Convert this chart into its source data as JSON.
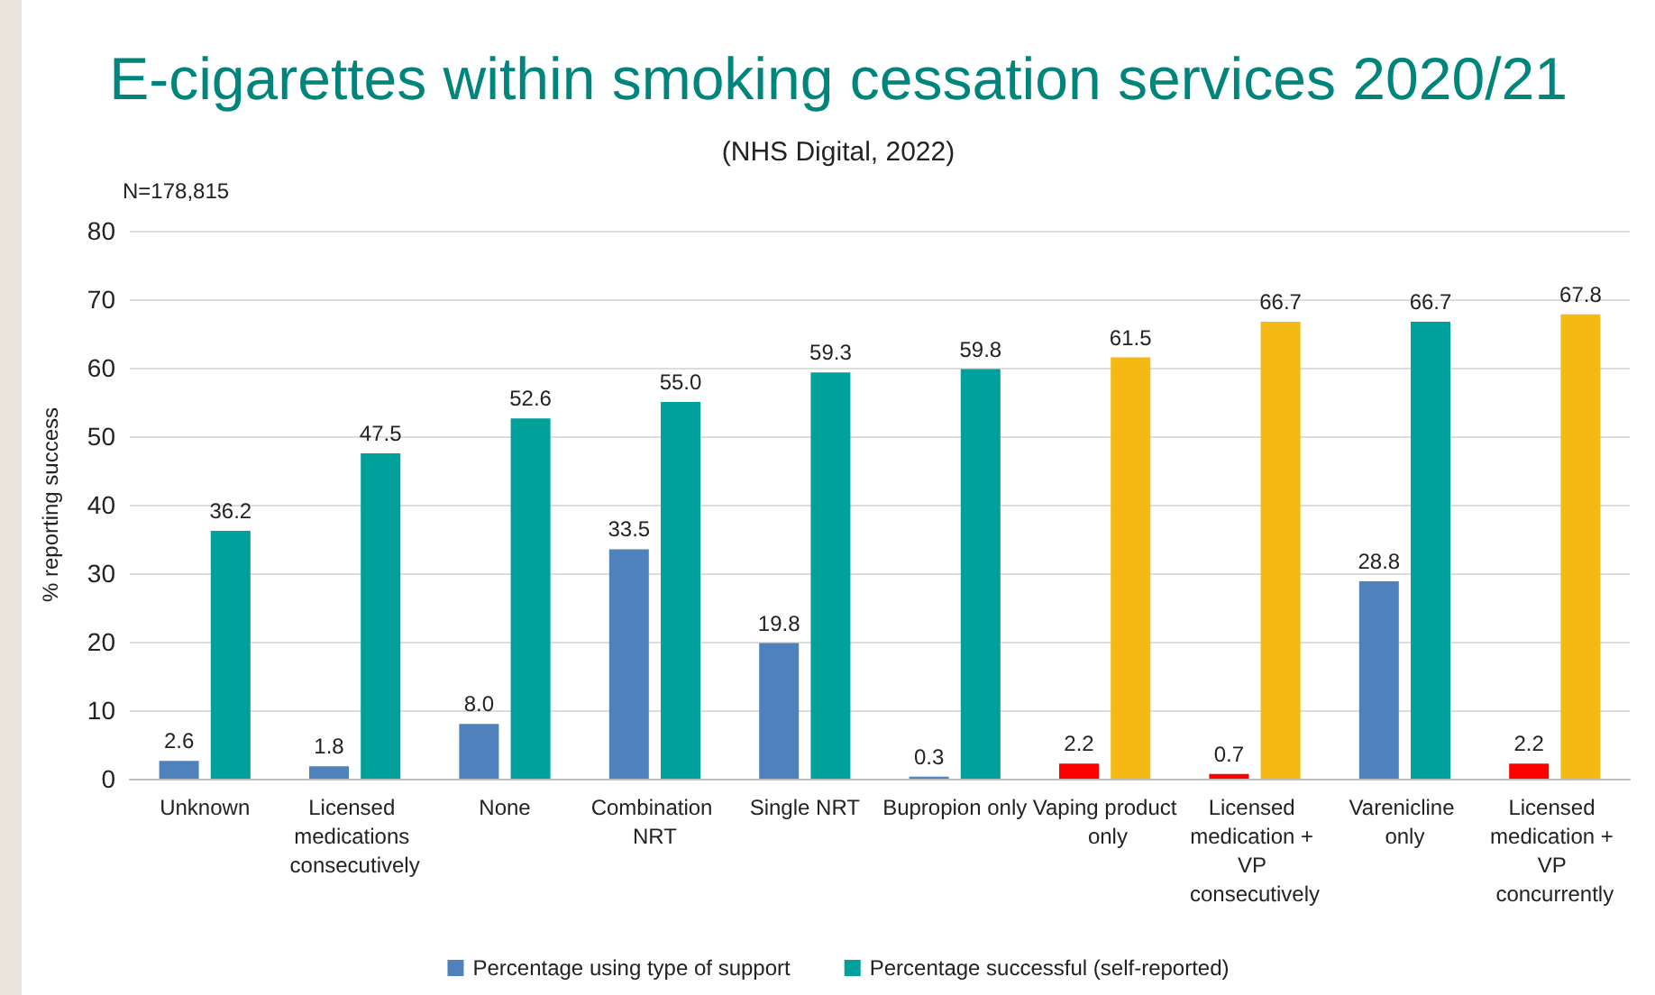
{
  "chart_data": {
    "type": "bar",
    "title": "E-cigarettes within smoking cessation services 2020/21",
    "subtitle": "(NHS Digital, 2022)",
    "ylabel": "% reporting success",
    "annotations": [
      "N=178,815"
    ],
    "categories": [
      "Unknown",
      "Licensed medications consecutively",
      "None",
      "Combination NRT",
      "Single NRT",
      "Bupropion only",
      "Vaping product only",
      "Licensed medication + VP consecutively",
      "Varenicline only",
      "Licensed medication + VP concurrently"
    ],
    "series": [
      {
        "name": "Percentage using type of support",
        "color": "#4f81bd",
        "colors": [
          "#4f81bd",
          "#4f81bd",
          "#4f81bd",
          "#4f81bd",
          "#4f81bd",
          "#4f81bd",
          "#ff0000",
          "#ff0000",
          "#4f81bd",
          "#ff0000"
        ],
        "values": [
          2.6,
          1.8,
          8.0,
          33.5,
          19.8,
          0.3,
          2.2,
          0.7,
          28.8,
          2.2
        ],
        "value_labels": [
          "2.6",
          "1.8",
          "8.0",
          "33.5",
          "19.8",
          "0.3",
          "2.2",
          "0.7",
          "28.8",
          "2.2"
        ]
      },
      {
        "name": "Percentage successful (self-reported)",
        "color": "#00a19a",
        "colors": [
          "#00a19a",
          "#00a19a",
          "#00a19a",
          "#00a19a",
          "#00a19a",
          "#00a19a",
          "#f5b913",
          "#f5b913",
          "#00a19a",
          "#f5b913"
        ],
        "values": [
          36.2,
          47.5,
          52.6,
          55.0,
          59.3,
          59.8,
          61.5,
          66.7,
          66.7,
          67.8
        ],
        "value_labels": [
          "36.2",
          "47.5",
          "52.6",
          "55.0",
          "59.3",
          "59.8",
          "61.5",
          "66.7",
          "66.7",
          "67.8"
        ]
      }
    ],
    "ylim": [
      0,
      80
    ],
    "yticks": [
      0,
      10,
      20,
      30,
      40,
      50,
      60,
      70,
      80
    ],
    "grid": "y",
    "legend": "bottom"
  }
}
